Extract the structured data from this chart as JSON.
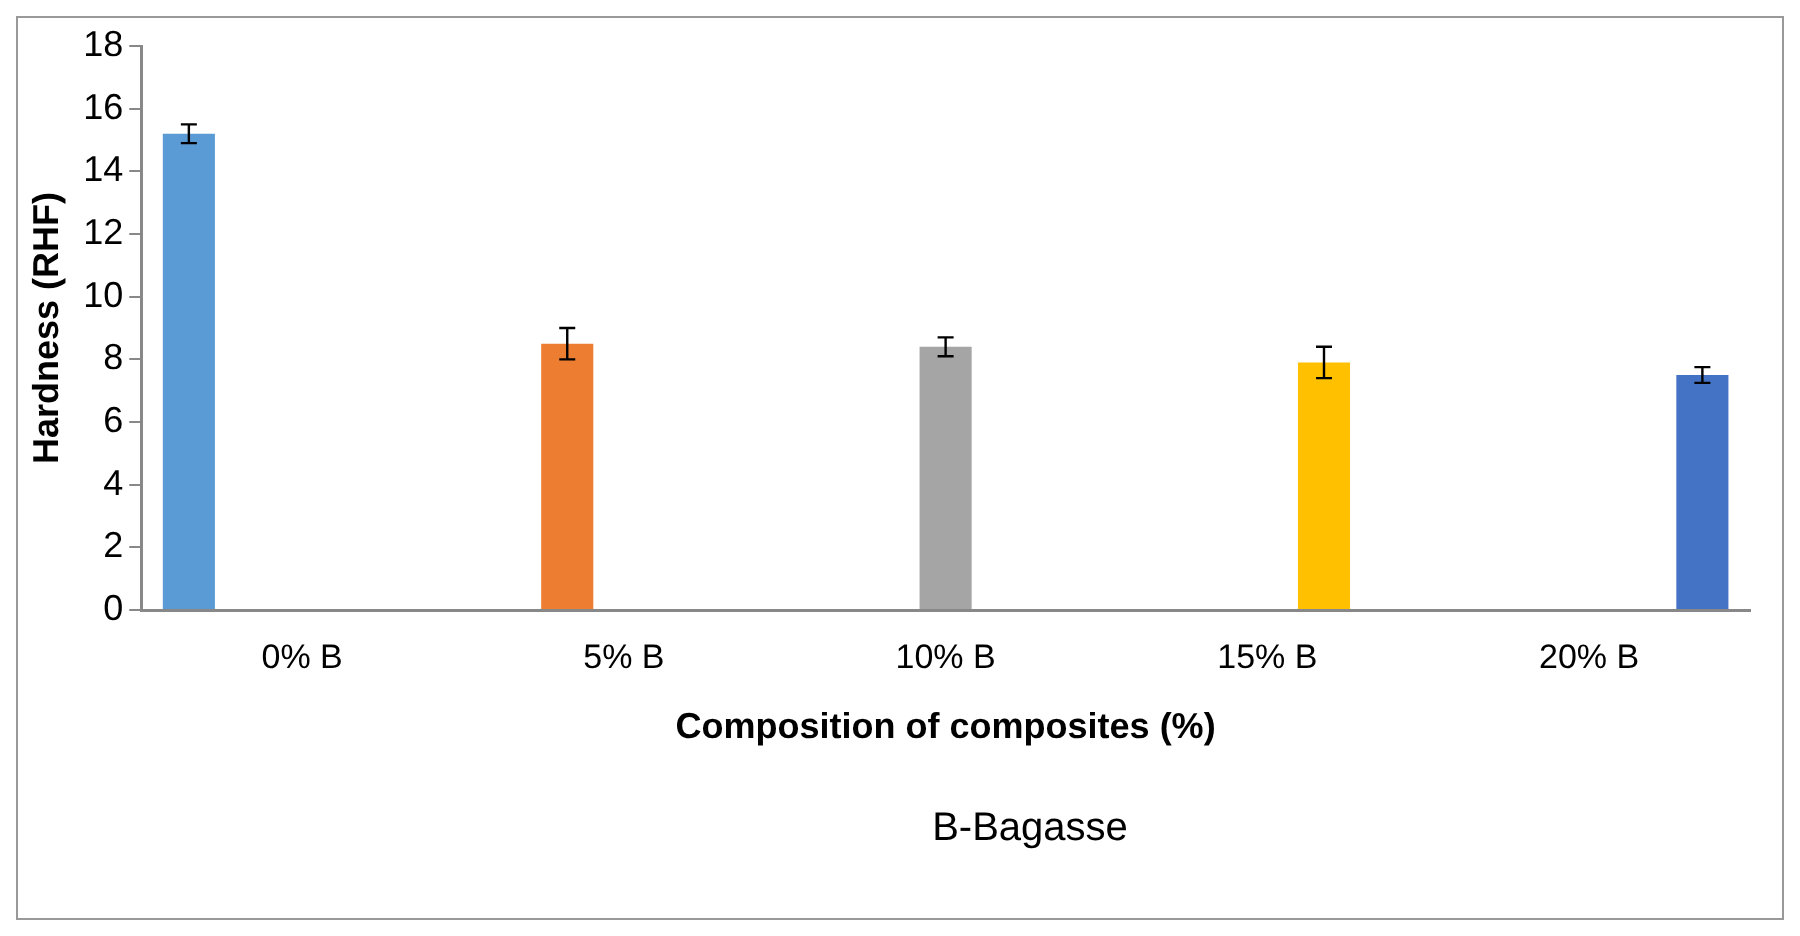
{
  "chart_data": {
    "type": "bar",
    "xlabel": "Composition of composites (%)",
    "ylabel": "Hardness (RHF)",
    "categories": [
      "0% B",
      "5% B",
      "10% B",
      "15% B",
      "20% B"
    ],
    "series": [
      {
        "color": "#5b9bd5",
        "values": [
          15.2,
          null,
          null,
          null,
          null
        ],
        "errors": [
          0.3,
          null,
          null,
          null,
          null
        ]
      },
      {
        "color": "#ed7d31",
        "values": [
          null,
          8.5,
          null,
          null,
          null
        ],
        "errors": [
          null,
          0.5,
          null,
          null,
          null
        ]
      },
      {
        "color": "#a5a5a5",
        "values": [
          null,
          null,
          8.4,
          null,
          null
        ],
        "errors": [
          null,
          null,
          0.3,
          null,
          null
        ]
      },
      {
        "color": "#ffc000",
        "values": [
          null,
          null,
          null,
          7.9,
          null
        ],
        "errors": [
          null,
          null,
          null,
          0.5,
          null
        ]
      },
      {
        "color": "#4472c4",
        "values": [
          null,
          null,
          null,
          null,
          7.5
        ],
        "errors": [
          null,
          null,
          null,
          null,
          0.25
        ]
      }
    ],
    "ylim": [
      0,
      18
    ],
    "yticks": [
      0,
      2,
      4,
      6,
      8,
      10,
      12,
      14,
      16,
      18
    ],
    "grid": false,
    "legend": false,
    "annotations": [
      "B-Bagasse"
    ]
  }
}
